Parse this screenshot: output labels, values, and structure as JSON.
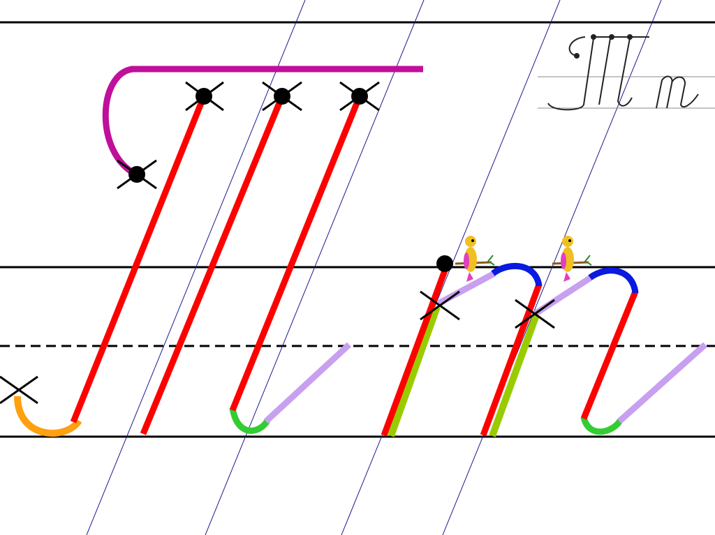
{
  "reference_image": {
    "letters": "Тт",
    "style": "cursive"
  },
  "colors": {
    "ruling": "#000000",
    "slant_guides": "#1a1a8c",
    "cap_stroke": "#c0109a",
    "main_stroke": "#ff0000",
    "lead_hook": "#ffa010",
    "exit_hook": "#33cc33",
    "connector": "#c8a0f0",
    "overlap_stroke": "#99cc00",
    "arch": "#0a1adf",
    "marker": "#000000"
  },
  "icons": [
    "cross-marker-icon",
    "start-dot-icon",
    "bird-icon"
  ]
}
